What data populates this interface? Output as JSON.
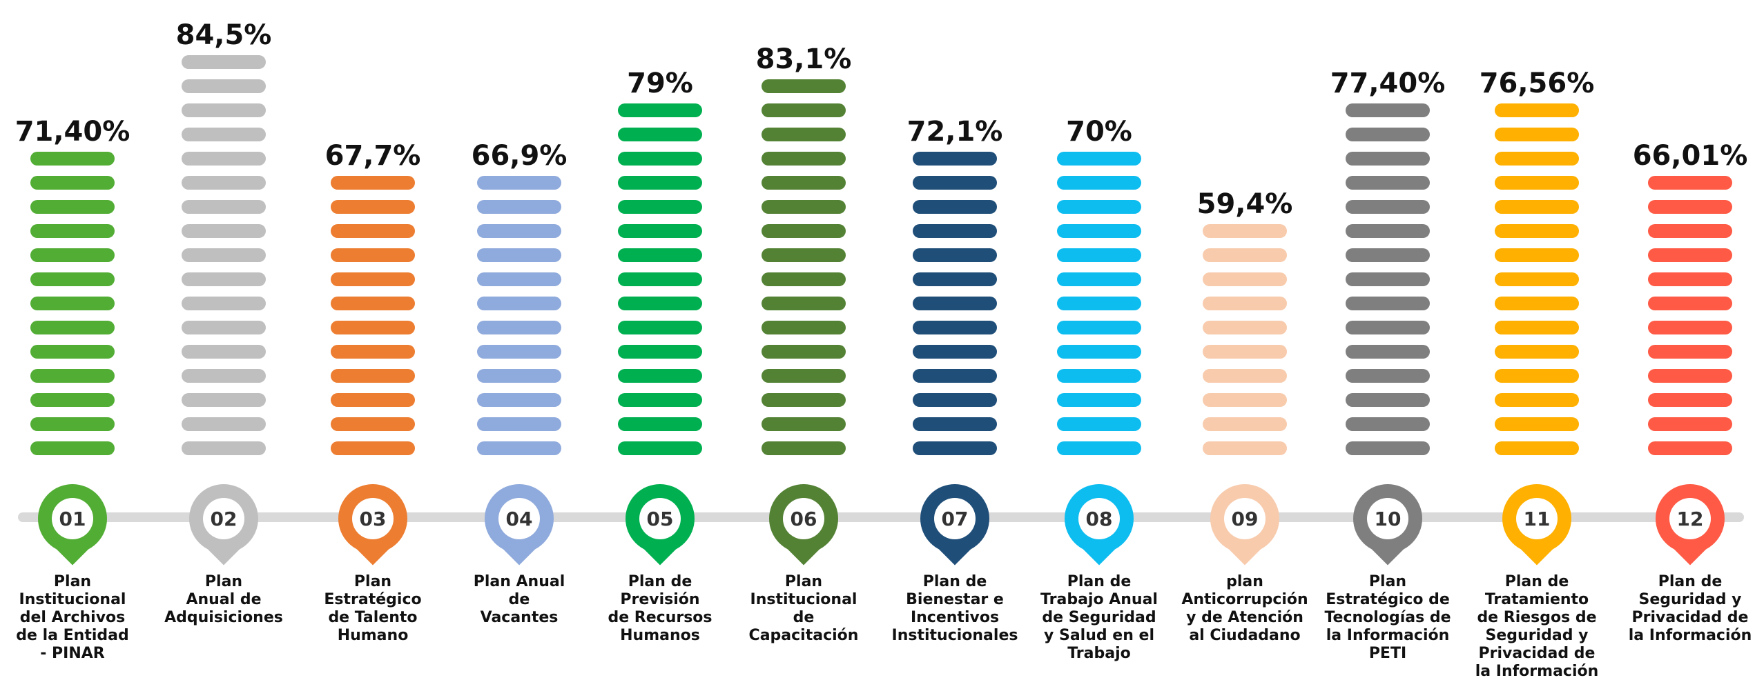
{
  "chart_data": {
    "type": "pill-columns",
    "categories": [
      "Plan\nInstitucional\ndel Archivos\nde la Entidad\n- PINAR",
      "Plan\nAnual de\nAdquisiciones",
      "Plan\nEstratégico\nde Talento\nHumano",
      "Plan Anual\nde\nVacantes",
      "Plan de\nPrevisión\nde Recursos\nHumanos",
      "Plan\nInstitucional\nde\nCapacitación",
      "Plan de\nBienestar e\nIncentivos\nInstitucionales",
      "Plan de\nTrabajo Anual\nde Seguridad\ny Salud en el\nTrabajo",
      "plan\nAnticorrupción\ny de Atención\nal Ciudadano",
      "Plan\nEstratégico de\nTecnologías de\nla Información\nPETI",
      "Plan de\nTratamiento\nde Riesgos de\nSeguridad y\nPrivacidad de\nla Información",
      "Plan de\nSeguridad y\nPrivacidad de\nla Información"
    ],
    "codes": [
      "01",
      "02",
      "03",
      "04",
      "05",
      "06",
      "07",
      "08",
      "09",
      "10",
      "11",
      "12"
    ],
    "values": [
      71.4,
      84.5,
      67.7,
      66.9,
      79,
      83.1,
      72.1,
      70,
      59.4,
      77.4,
      76.56,
      66.01
    ],
    "value_labels": [
      "71,40%",
      "84,5%",
      "67,7%",
      "66,9%",
      "79%",
      "83,1%",
      "72,1%",
      "70%",
      "59,4%",
      "77,40%",
      "76,56%",
      "66,01%"
    ],
    "colors": [
      "#52ad34",
      "#bfbfbf",
      "#ed7d31",
      "#8faadc",
      "#00b050",
      "#548235",
      "#1f4e79",
      "#0dbdf0",
      "#f8cbad",
      "#7f7f7f",
      "#ffb000",
      "#ff5a45"
    ]
  }
}
